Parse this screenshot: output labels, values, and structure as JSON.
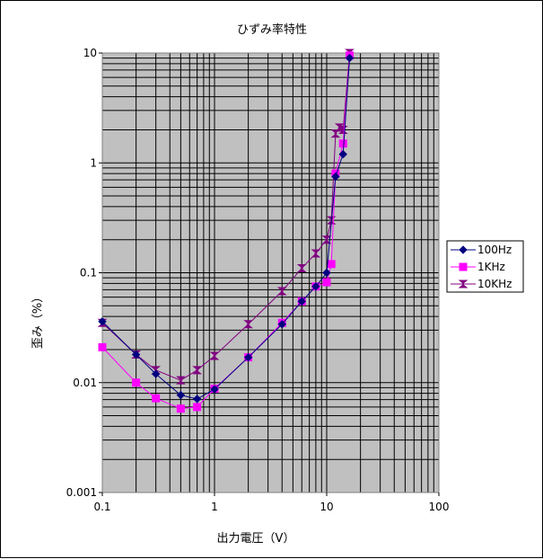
{
  "chart_data": {
    "type": "line",
    "title": "ひずみ率特性",
    "xlabel": "出力電圧（V）",
    "ylabel": "歪み（%）",
    "x_scale": "log",
    "y_scale": "log",
    "xlim": [
      0.1,
      100
    ],
    "ylim": [
      0.001,
      10
    ],
    "x_tick_labels": [
      "0.1",
      "1",
      "10",
      "100"
    ],
    "y_tick_labels": [
      "10",
      "1",
      "0.1",
      "0.01",
      "0.001"
    ],
    "grid": true,
    "plot_background": "#c0c0c0",
    "legend_position": "right",
    "series": [
      {
        "name": "100Hz",
        "color": "#000080",
        "marker": "diamond",
        "x": [
          0.1,
          0.2,
          0.3,
          0.5,
          0.7,
          1,
          2,
          4,
          6,
          8,
          10,
          12,
          14,
          16
        ],
        "y": [
          0.036,
          0.018,
          0.012,
          0.0077,
          0.0071,
          0.0087,
          0.017,
          0.034,
          0.055,
          0.075,
          0.1,
          0.75,
          1.2,
          9.0
        ]
      },
      {
        "name": "1KHz",
        "color": "#ff00ff",
        "marker": "square",
        "x": [
          0.1,
          0.2,
          0.3,
          0.5,
          0.7,
          1,
          2,
          4,
          6,
          8,
          10,
          11,
          12,
          14,
          16
        ],
        "y": [
          0.021,
          0.01,
          0.0072,
          0.0058,
          0.006,
          0.0088,
          0.017,
          0.035,
          0.055,
          0.075,
          0.082,
          0.12,
          0.8,
          1.5,
          9.5
        ]
      },
      {
        "name": "10KHz",
        "color": "#800080",
        "marker": "hourglass",
        "x": [
          0.1,
          0.2,
          0.3,
          0.5,
          0.7,
          1,
          2,
          4,
          6,
          8,
          10,
          11,
          12,
          13,
          14,
          16
        ],
        "y": [
          0.035,
          0.018,
          0.013,
          0.0105,
          0.013,
          0.0175,
          0.034,
          0.068,
          0.11,
          0.15,
          0.2,
          0.3,
          1.85,
          2.1,
          2.0,
          10.0
        ]
      }
    ]
  }
}
